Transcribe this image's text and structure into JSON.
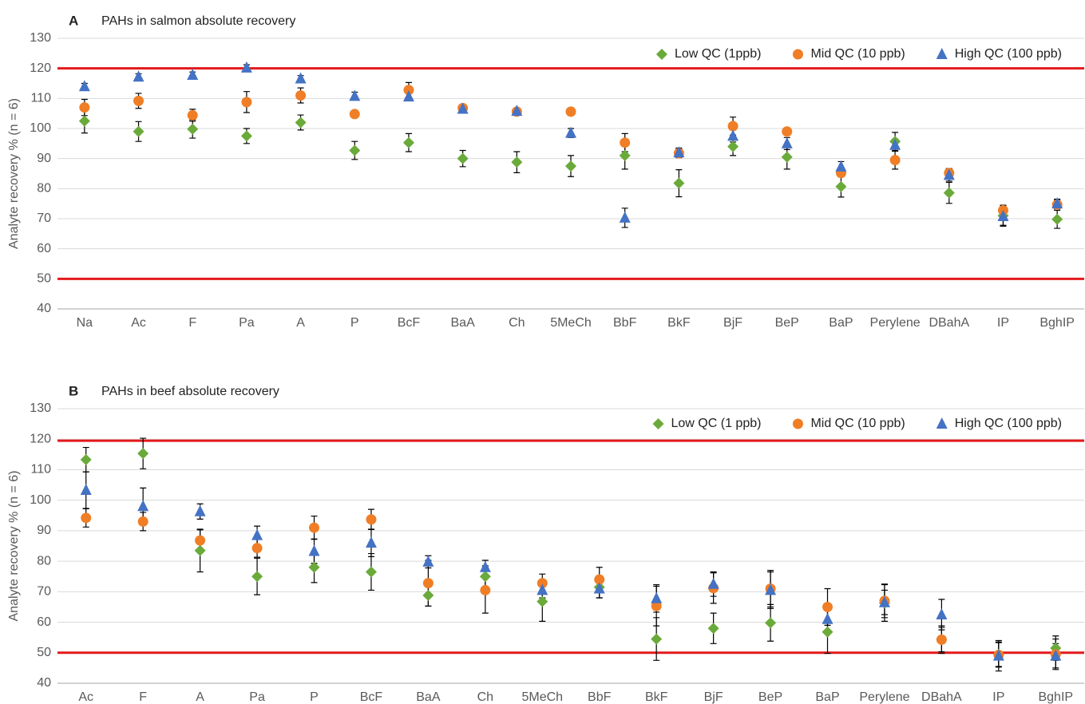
{
  "chart_data": [
    {
      "type": "point",
      "panel_label": "A",
      "title": "PAHs in salmon absolute recovery",
      "ylabel": "Analyte recovery % (n = 6)",
      "categories": [
        "Na",
        "Ac",
        "F",
        "Pa",
        "A",
        "P",
        "BcF",
        "BaA",
        "Ch",
        "5MeCh",
        "BbF",
        "BkF",
        "BjF",
        "BeP",
        "BaP",
        "Perylene",
        "DBahA",
        "IP",
        "BghIP"
      ],
      "ylim": [
        40,
        130
      ],
      "yticks": [
        40,
        50,
        60,
        70,
        80,
        90,
        100,
        110,
        120,
        130
      ],
      "grid": true,
      "legend": "upper right",
      "ref_lines": [
        120,
        50
      ],
      "ref_color": "#e3191c",
      "series": [
        {
          "name": "Low QC (1ppb)",
          "color": "#6aaa3a",
          "marker": "diamond",
          "values": [
            102.5,
            99,
            99.8,
            97.5,
            102,
            92.7,
            95.3,
            90,
            88.8,
            87.5,
            91,
            81.8,
            94,
            90.5,
            80.7,
            95.7,
            78.6,
            71,
            69.8
          ],
          "errors": [
            4,
            3.3,
            3,
            2.5,
            2.5,
            3,
            3,
            2.7,
            3.5,
            3.5,
            4.5,
            4.5,
            3,
            4,
            3.5,
            3,
            3.5,
            3.5,
            3
          ]
        },
        {
          "name": "Mid QC (10 ppb)",
          "color": "#f07e26",
          "marker": "circle",
          "values": [
            107,
            109.2,
            104.4,
            108.8,
            111,
            104.8,
            112.8,
            106.8,
            105.6,
            105.6,
            95.3,
            91.8,
            100.8,
            99,
            85.2,
            89.5,
            85.2,
            72.8,
            74.7
          ],
          "errors": [
            2.7,
            2.5,
            2,
            3.5,
            2.5,
            1,
            2.5,
            0.8,
            1,
            1.2,
            3,
            1.5,
            3,
            1,
            1,
            3,
            1.5,
            1.5,
            1.5
          ]
        },
        {
          "name": "High QC (100 ppb)",
          "color": "#4472c4",
          "marker": "triangle",
          "values": [
            114,
            117.2,
            117.8,
            120.2,
            116.6,
            110.8,
            110.6,
            106.5,
            105.8,
            98.5,
            70.3,
            92,
            97.5,
            95,
            87.3,
            94.5,
            84.5,
            70.8,
            75
          ],
          "errors": [
            1,
            1,
            1,
            1,
            1,
            1.3,
            1,
            0.8,
            1,
            1.5,
            3.2,
            1.5,
            2,
            2,
            1.7,
            2,
            2,
            3,
            1.5
          ]
        }
      ]
    },
    {
      "type": "point",
      "panel_label": "B",
      "title": "PAHs in beef absolute recovery",
      "ylabel": "Analyte recovery % (n = 6)",
      "categories": [
        "Ac",
        "F",
        "A",
        "Pa",
        "P",
        "BcF",
        "BaA",
        "Ch",
        "5MeCh",
        "BbF",
        "BkF",
        "BjF",
        "BeP",
        "BaP",
        "Perylene",
        "DBahA",
        "IP",
        "BghIP"
      ],
      "ylim": [
        40,
        130
      ],
      "yticks": [
        40,
        50,
        60,
        70,
        80,
        90,
        100,
        110,
        120,
        130
      ],
      "grid": true,
      "legend": "upper right",
      "ref_lines": [
        119.5,
        50
      ],
      "ref_color": "#e3191c",
      "series": [
        {
          "name": "Low QC (1 ppb)",
          "color": "#6aaa3a",
          "marker": "diamond",
          "values": [
            113.3,
            115.3,
            83.5,
            75,
            78,
            76.5,
            68.8,
            75,
            66.8,
            71.5,
            54.5,
            58,
            59.8,
            56.8,
            66.3,
            54.3,
            49.5,
            51.5
          ],
          "errors": [
            4,
            5,
            7,
            6,
            5,
            6,
            3.5,
            3.5,
            6.5,
            3.5,
            7,
            5,
            6,
            7,
            6,
            4.5,
            4,
            4
          ]
        },
        {
          "name": "Mid QC (10 ppb)",
          "color": "#f07e26",
          "marker": "circle",
          "values": [
            94.2,
            93,
            86.8,
            84.3,
            91,
            93.7,
            72.8,
            70.5,
            72.8,
            74,
            65.3,
            71.2,
            71,
            65,
            67,
            54.3,
            49.3,
            49.5
          ],
          "errors": [
            3,
            3,
            3.5,
            3,
            3.8,
            3.3,
            7.5,
            7.5,
            3,
            4,
            6.5,
            5,
            6,
            6,
            5.5,
            4,
            4,
            5
          ]
        },
        {
          "name": "High QC (100 ppb)",
          "color": "#4472c4",
          "marker": "triangle",
          "values": [
            103.3,
            98,
            96.3,
            88.5,
            83.3,
            86,
            79.8,
            78,
            70.5,
            71,
            67.8,
            72.5,
            70.5,
            61,
            66.5,
            62.5,
            49,
            49
          ],
          "errors": [
            6,
            6,
            2.5,
            3,
            4,
            4.5,
            2,
            2.3,
            2.5,
            3,
            4.5,
            4,
            6,
            4,
            4,
            5,
            5,
            4
          ]
        }
      ]
    }
  ]
}
